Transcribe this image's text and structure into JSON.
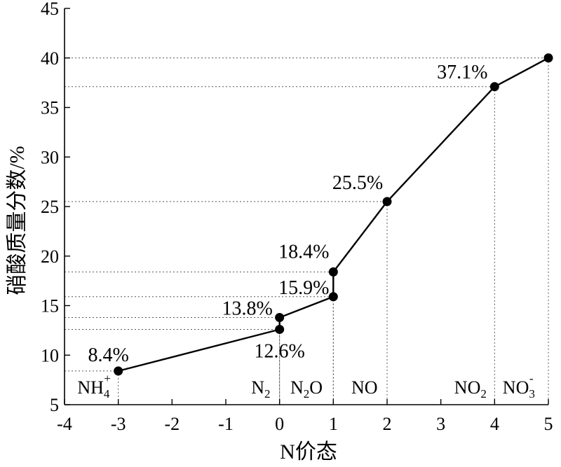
{
  "chart_data": {
    "type": "line",
    "xlabel": "N价态",
    "ylabel": "硝酸质量分数/%",
    "xlim": [
      -4,
      5
    ],
    "ylim": [
      5,
      45
    ],
    "x_ticks": [
      -4,
      -3,
      -2,
      -1,
      0,
      1,
      2,
      3,
      4,
      5
    ],
    "y_ticks": [
      5,
      10,
      15,
      20,
      25,
      30,
      35,
      40,
      45
    ],
    "grid": false,
    "series": [
      {
        "points": [
          {
            "x": -3,
            "y": 8.4
          },
          {
            "x": 0,
            "y": 12.6
          },
          {
            "x": 0,
            "y": 13.8
          },
          {
            "x": 1,
            "y": 15.9
          },
          {
            "x": 1,
            "y": 18.4
          },
          {
            "x": 2,
            "y": 25.5
          },
          {
            "x": 4,
            "y": 37.1
          },
          {
            "x": 5,
            "y": 40
          }
        ]
      }
    ],
    "annotations": [
      {
        "x": -3,
        "y": 8.4,
        "text": "8.4%"
      },
      {
        "x": 0,
        "y": 12.6,
        "text": "12.6%"
      },
      {
        "x": 0,
        "y": 13.8,
        "text": "13.8%"
      },
      {
        "x": 1,
        "y": 15.9,
        "text": "15.9%"
      },
      {
        "x": 1,
        "y": 18.4,
        "text": "18.4%"
      },
      {
        "x": 2,
        "y": 25.5,
        "text": "25.5%"
      },
      {
        "x": 4,
        "y": 37.1,
        "text": "37.1%"
      }
    ],
    "regions": [
      {
        "name": "nh4-region-label",
        "base": "NH",
        "sub": "4",
        "sup": "+"
      },
      {
        "name": "n2-region-label",
        "base": "N",
        "sub": "2",
        "rest": ""
      },
      {
        "name": "n2o-region-label",
        "base": "N",
        "sub": "2",
        "rest": "O"
      },
      {
        "name": "no-region-label",
        "base": "NO"
      },
      {
        "name": "no2-region-label",
        "base": "NO",
        "sub": "2"
      },
      {
        "name": "no3-region-label",
        "base": "NO",
        "sub": "3",
        "sup": "-"
      }
    ]
  }
}
